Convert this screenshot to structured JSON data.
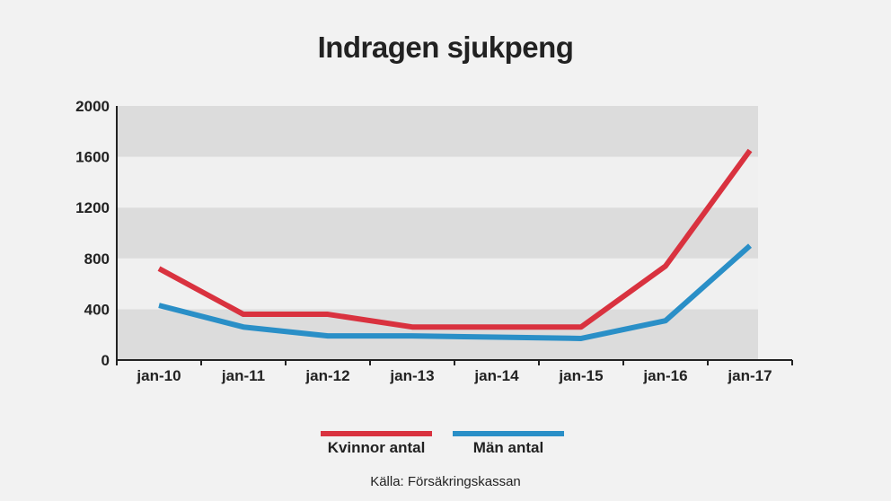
{
  "colors": {
    "kvinnor": "#d9323f",
    "man": "#2a8fc7",
    "band_dark": "#dcdcdc",
    "band_light": "#f0f0f0",
    "axis": "#222222"
  },
  "chart_data": {
    "type": "line",
    "title": "Indragen sjukpeng",
    "categories": [
      "jan-10",
      "jan-11",
      "jan-12",
      "jan-13",
      "jan-14",
      "jan-15",
      "jan-16",
      "jan-17"
    ],
    "y_ticks": [
      0,
      400,
      800,
      1200,
      1600,
      2000
    ],
    "ylim": [
      0,
      2000
    ],
    "grid": "alternating horizontal bands",
    "legend_position": "bottom",
    "series": [
      {
        "name": "Kvinnor antal",
        "values": [
          720,
          360,
          360,
          260,
          260,
          260,
          740,
          1650
        ]
      },
      {
        "name": "Män antal",
        "values": [
          430,
          260,
          190,
          190,
          180,
          170,
          310,
          900
        ]
      }
    ],
    "source": "Källa: Försäkringskassan"
  }
}
